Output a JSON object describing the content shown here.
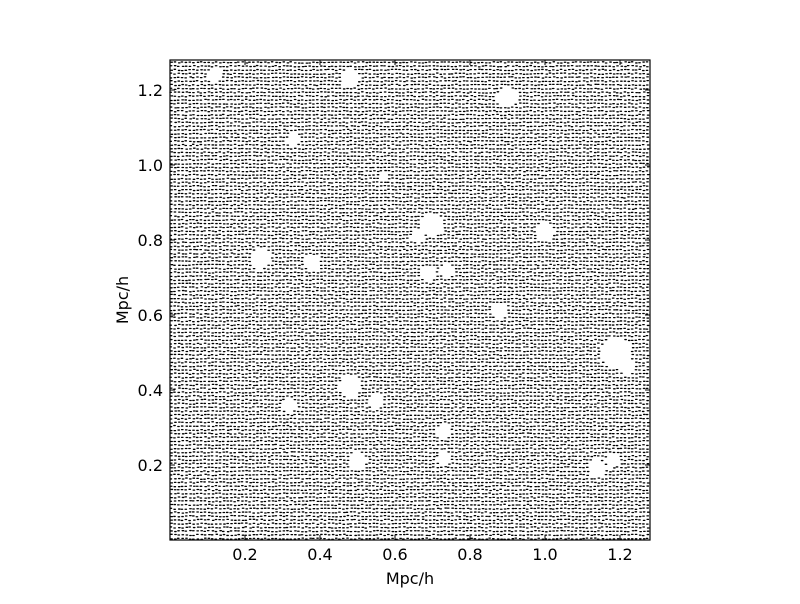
{
  "chart_data": {
    "type": "scatter",
    "title": "",
    "xlabel": "Mpc/h",
    "ylabel": "Mpc/h",
    "xlim": [
      0.0,
      1.28
    ],
    "ylim": [
      0.0,
      1.28
    ],
    "grid": false,
    "legend": "none",
    "marker_color": "#000000",
    "x_ticks": [
      {
        "value": 0.2,
        "label": "0.2"
      },
      {
        "value": 0.4,
        "label": "0.4"
      },
      {
        "value": 0.6,
        "label": "0.6"
      },
      {
        "value": 0.8,
        "label": "0.8"
      },
      {
        "value": 1.0,
        "label": "1.0"
      },
      {
        "value": 1.2,
        "label": "1.2"
      }
    ],
    "y_ticks": [
      {
        "value": 0.2,
        "label": "0.2"
      },
      {
        "value": 0.4,
        "label": "0.4"
      },
      {
        "value": 0.6,
        "label": "0.6"
      },
      {
        "value": 0.8,
        "label": "0.8"
      },
      {
        "value": 1.0,
        "label": "1.0"
      },
      {
        "value": 1.2,
        "label": "1.2"
      }
    ],
    "particle_grid": {
      "x_start": 0.0035,
      "y_start": 0.0035,
      "step": 0.01,
      "count": 128
    },
    "voids": [
      {
        "x": 0.48,
        "y": 1.23,
        "r": 0.025
      },
      {
        "x": 0.9,
        "y": 1.18,
        "r": 0.028
      },
      {
        "x": 0.7,
        "y": 0.84,
        "r": 0.03
      },
      {
        "x": 0.66,
        "y": 0.81,
        "r": 0.018
      },
      {
        "x": 1.0,
        "y": 0.82,
        "r": 0.025
      },
      {
        "x": 0.24,
        "y": 0.75,
        "r": 0.028
      },
      {
        "x": 0.38,
        "y": 0.74,
        "r": 0.022
      },
      {
        "x": 0.69,
        "y": 0.71,
        "r": 0.022
      },
      {
        "x": 0.74,
        "y": 0.72,
        "r": 0.018
      },
      {
        "x": 0.88,
        "y": 0.61,
        "r": 0.022
      },
      {
        "x": 1.19,
        "y": 0.5,
        "r": 0.04
      },
      {
        "x": 1.22,
        "y": 0.46,
        "r": 0.02
      },
      {
        "x": 0.48,
        "y": 0.41,
        "r": 0.03
      },
      {
        "x": 0.55,
        "y": 0.37,
        "r": 0.02
      },
      {
        "x": 0.32,
        "y": 0.36,
        "r": 0.018
      },
      {
        "x": 0.73,
        "y": 0.29,
        "r": 0.02
      },
      {
        "x": 0.73,
        "y": 0.22,
        "r": 0.018
      },
      {
        "x": 0.5,
        "y": 0.21,
        "r": 0.025
      },
      {
        "x": 1.14,
        "y": 0.19,
        "r": 0.025
      },
      {
        "x": 1.18,
        "y": 0.21,
        "r": 0.018
      },
      {
        "x": 0.33,
        "y": 1.07,
        "r": 0.018
      },
      {
        "x": 0.57,
        "y": 0.97,
        "r": 0.015
      },
      {
        "x": 0.12,
        "y": 1.24,
        "r": 0.02
      }
    ]
  }
}
